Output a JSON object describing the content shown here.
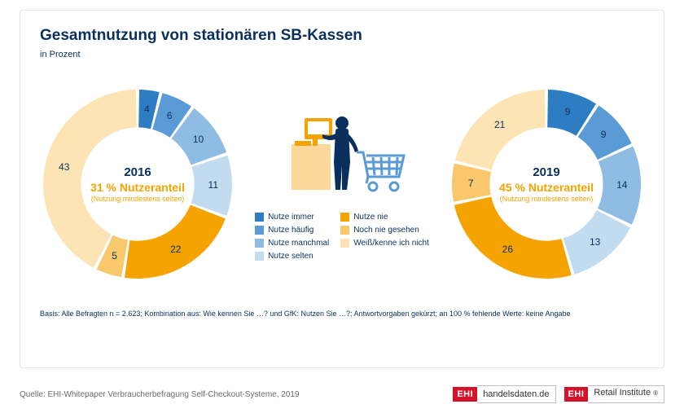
{
  "title": "Gesamtnutzung von stationären SB-Kassen",
  "subtitle": "in Prozent",
  "palette": {
    "deep_blue": "#0a2f5c",
    "series": {
      "immer": "#2e7dc2",
      "haeufig": "#5b9bd5",
      "manchmal": "#8fbce2",
      "selten": "#c3dbee",
      "nie": "#f5a300",
      "noch_nie": "#f9c86c",
      "weiss_nicht": "#fde4b4"
    },
    "cart_stroke": "#5b9bd5",
    "kiosk_fill": "#fcd89a",
    "screen_fill": "#f5a300",
    "person_fill": "#0a2f5c"
  },
  "legend": {
    "col1": [
      {
        "key": "immer",
        "label": "Nutze immer"
      },
      {
        "key": "haeufig",
        "label": "Nutze häufig"
      },
      {
        "key": "manchmal",
        "label": "Nutze manchmal"
      },
      {
        "key": "selten",
        "label": "Nutze selten"
      }
    ],
    "col2": [
      {
        "key": "nie",
        "label": "Nutze nie"
      },
      {
        "key": "noch_nie",
        "label": "Noch nie gesehen"
      },
      {
        "key": "weiss_nicht",
        "label": "Weiß/kenne ich nicht"
      }
    ]
  },
  "donut": {
    "inner_ratio": 0.6,
    "gap_deg": 2,
    "label_radius_ratio": 0.8
  },
  "charts": [
    {
      "id": "donut-2016",
      "center": {
        "year": "2016",
        "share": "31 % Nutzeranteil",
        "caption": "(Nutzung mindestens selten)"
      },
      "slices": [
        {
          "key": "immer",
          "value": 4,
          "label": "4"
        },
        {
          "key": "haeufig",
          "value": 6,
          "label": "6"
        },
        {
          "key": "manchmal",
          "value": 10,
          "label": "10"
        },
        {
          "key": "selten",
          "value": 11,
          "label": "11"
        },
        {
          "key": "nie",
          "value": 22,
          "label": "22"
        },
        {
          "key": "noch_nie",
          "value": 5,
          "label": "5"
        },
        {
          "key": "weiss_nicht",
          "value": 43,
          "label": "43"
        }
      ]
    },
    {
      "id": "donut-2019",
      "center": {
        "year": "2019",
        "share": "45 % Nutzeranteil",
        "caption": "(Nutzung mindestens selten)"
      },
      "slices": [
        {
          "key": "immer",
          "value": 9,
          "label": "9"
        },
        {
          "key": "haeufig",
          "value": 9,
          "label": "9"
        },
        {
          "key": "manchmal",
          "value": 14,
          "label": "14"
        },
        {
          "key": "selten",
          "value": 13,
          "label": "13"
        },
        {
          "key": "nie",
          "value": 26,
          "label": "26"
        },
        {
          "key": "noch_nie",
          "value": 7,
          "label": "7"
        },
        {
          "key": "weiss_nicht",
          "value": 21,
          "label": "21"
        }
      ]
    }
  ],
  "footnote": "Basis: Alle Befragten n = 2.623; Kombination aus: Wie kennen Sie …? und GfK: Nutzen Sie …?; Antwortvorgaben gekürzt; an 100 % fehlende Werte: keine Angabe",
  "source": "Quelle: EHI-Whitepaper Verbraucherbefragung Self-Checkout-Systeme, 2019",
  "logos": {
    "box": "EHI",
    "a": "handelsdaten.de",
    "b": "Retail Institute",
    "reg": "®"
  }
}
